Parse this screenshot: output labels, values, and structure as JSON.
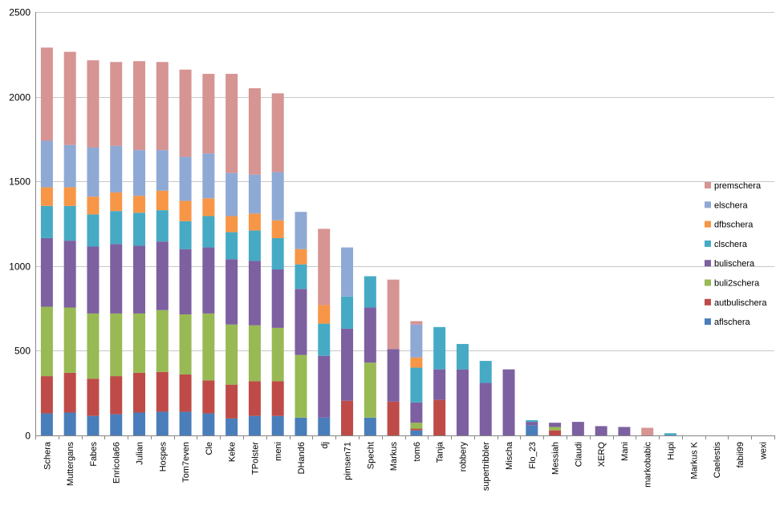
{
  "chart_data": {
    "type": "bar",
    "stacked": true,
    "title": "",
    "xlabel": "",
    "ylabel": "",
    "ylim": [
      0,
      2500
    ],
    "yticks": [
      0,
      500,
      1000,
      1500,
      2000,
      2500
    ],
    "grid": true,
    "legend_position": "right",
    "categories": [
      "Schera",
      "Muttergans",
      "Fabes",
      "Enricola66",
      "Julian",
      "Hospes",
      "Tom7even",
      "Cle",
      "Keke",
      "TPolster",
      "meni",
      "DHand6",
      "dj",
      "pimsen71",
      "Specht",
      "Markus",
      "tom6",
      "Tanja",
      "robbery",
      "supertribbler",
      "Mischa",
      "Flo_23",
      "Messiah",
      "Claudi",
      "XERQ",
      "Mani",
      "markobabic",
      "Hupi",
      "Markus K",
      "Caelestis",
      "fabii99",
      "wexi"
    ],
    "series": [
      {
        "name": "aflschera",
        "color": "#4a7ebb",
        "values": [
          130,
          135,
          115,
          125,
          135,
          140,
          140,
          130,
          100,
          115,
          115,
          105,
          105,
          0,
          105,
          0,
          30,
          0,
          0,
          0,
          0,
          60,
          0,
          0,
          0,
          0,
          0,
          0,
          0,
          0,
          0,
          0
        ]
      },
      {
        "name": "autbulischera",
        "color": "#be4b48",
        "values": [
          220,
          235,
          220,
          225,
          235,
          235,
          220,
          195,
          200,
          205,
          205,
          0,
          0,
          205,
          0,
          200,
          10,
          210,
          0,
          0,
          0,
          0,
          30,
          0,
          0,
          0,
          0,
          0,
          0,
          0,
          0,
          0
        ]
      },
      {
        "name": "buli2schera",
        "color": "#98b954",
        "values": [
          410,
          385,
          385,
          370,
          350,
          365,
          355,
          395,
          355,
          330,
          315,
          370,
          0,
          0,
          325,
          0,
          35,
          0,
          0,
          0,
          0,
          0,
          20,
          0,
          0,
          0,
          0,
          0,
          0,
          0,
          0,
          0
        ]
      },
      {
        "name": "bulischera",
        "color": "#7d60a0",
        "values": [
          405,
          395,
          395,
          410,
          400,
          405,
          385,
          390,
          385,
          380,
          345,
          390,
          365,
          425,
          325,
          310,
          120,
          180,
          390,
          310,
          390,
          20,
          25,
          80,
          55,
          50,
          0,
          0,
          0,
          0,
          0,
          0
        ]
      },
      {
        "name": "clschera",
        "color": "#46aac5",
        "values": [
          190,
          205,
          190,
          195,
          195,
          185,
          165,
          185,
          160,
          180,
          185,
          145,
          190,
          190,
          185,
          0,
          205,
          250,
          150,
          130,
          0,
          10,
          0,
          0,
          0,
          0,
          0,
          13,
          0,
          0,
          0,
          0
        ]
      },
      {
        "name": "dfbschera",
        "color": "#f79646",
        "values": [
          110,
          110,
          105,
          110,
          100,
          115,
          120,
          105,
          95,
          100,
          105,
          90,
          110,
          0,
          0,
          0,
          60,
          0,
          0,
          0,
          0,
          0,
          0,
          0,
          0,
          0,
          0,
          0,
          0,
          0,
          0,
          0
        ]
      },
      {
        "name": "elschera",
        "color": "#8fa9d5",
        "values": [
          275,
          250,
          290,
          275,
          270,
          240,
          260,
          265,
          255,
          230,
          285,
          220,
          0,
          290,
          0,
          0,
          195,
          0,
          0,
          0,
          0,
          0,
          0,
          0,
          0,
          0,
          0,
          0,
          0,
          0,
          0,
          0
        ]
      },
      {
        "name": "premschera",
        "color": "#d69493",
        "values": [
          550,
          550,
          515,
          495,
          525,
          520,
          515,
          470,
          585,
          510,
          465,
          0,
          450,
          0,
          0,
          410,
          20,
          0,
          0,
          0,
          0,
          0,
          0,
          0,
          0,
          0,
          45,
          0,
          0,
          0,
          0,
          0
        ]
      }
    ]
  }
}
